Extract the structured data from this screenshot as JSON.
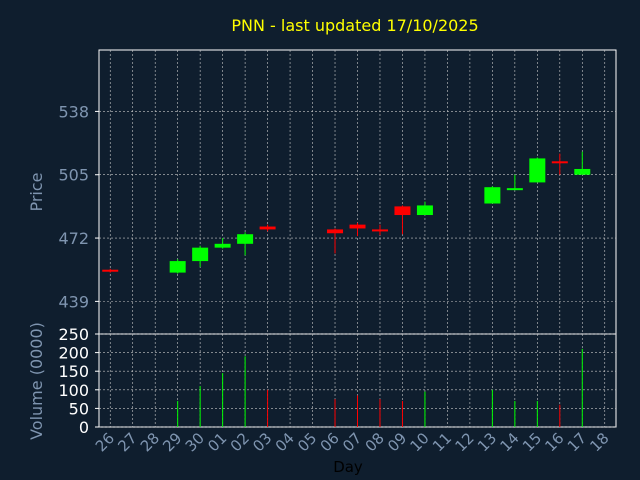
{
  "chart_data": [
    {
      "type": "candlestick",
      "title": "PNN - last updated 17/10/2025",
      "ylabel": "Price",
      "xlabel": "Day",
      "yticks": [
        439,
        472,
        505,
        538
      ],
      "ylim": [
        422,
        570
      ],
      "x_ticks": [
        "26",
        "27",
        "28",
        "29",
        "30",
        "01",
        "02",
        "03",
        "04",
        "05",
        "06",
        "07",
        "08",
        "09",
        "10",
        "11",
        "12",
        "13",
        "14",
        "15",
        "16",
        "17",
        "18"
      ],
      "grid": true,
      "candles": [
        {
          "day": "26",
          "open": 455.5,
          "close": 454.5,
          "high": 456.0,
          "low": 454.0
        },
        {
          "day": "29",
          "open": 454.0,
          "close": 460.0,
          "high": 461.0,
          "low": 453.5
        },
        {
          "day": "30",
          "open": 460.0,
          "close": 467.0,
          "high": 468.0,
          "low": 457.0
        },
        {
          "day": "01",
          "open": 467.0,
          "close": 469.0,
          "high": 472.0,
          "low": 466.5
        },
        {
          "day": "02",
          "open": 469.0,
          "close": 474.0,
          "high": 475.0,
          "low": 463.0
        },
        {
          "day": "03",
          "open": 478.0,
          "close": 476.5,
          "high": 479.0,
          "low": 475.5
        },
        {
          "day": "06",
          "open": 476.5,
          "close": 474.5,
          "high": 477.0,
          "low": 464.0
        },
        {
          "day": "07",
          "open": 479.0,
          "close": 477.0,
          "high": 480.0,
          "low": 473.0
        },
        {
          "day": "08",
          "open": 476.5,
          "close": 476.0,
          "high": 479.0,
          "low": 473.5
        },
        {
          "day": "09",
          "open": 488.5,
          "close": 484.0,
          "high": 489.0,
          "low": 474.0
        },
        {
          "day": "10",
          "open": 484.0,
          "close": 489.0,
          "high": 491.0,
          "low": 484.0
        },
        {
          "day": "13",
          "open": 490.0,
          "close": 498.5,
          "high": 499.0,
          "low": 490.0
        },
        {
          "day": "14",
          "open": 497.0,
          "close": 498.0,
          "high": 505.0,
          "low": 497.0
        },
        {
          "day": "15",
          "open": 501.0,
          "close": 513.5,
          "high": 514.0,
          "low": 501.0
        },
        {
          "day": "16",
          "open": 512.0,
          "close": 511.5,
          "high": 516.0,
          "low": 505.0
        },
        {
          "day": "17",
          "open": 505.0,
          "close": 508.0,
          "high": 517.0,
          "low": 505.0
        }
      ]
    },
    {
      "type": "bar",
      "ylabel": "Volume (0000)",
      "yticks": [
        0,
        50,
        100,
        150,
        200,
        250
      ],
      "ylim": [
        0,
        250
      ],
      "volumes": [
        {
          "day": "29",
          "value": 70,
          "dir": "up"
        },
        {
          "day": "30",
          "value": 110,
          "dir": "up"
        },
        {
          "day": "01",
          "value": 145,
          "dir": "up"
        },
        {
          "day": "02",
          "value": 190,
          "dir": "up"
        },
        {
          "day": "03",
          "value": 100,
          "dir": "down"
        },
        {
          "day": "06",
          "value": 75,
          "dir": "down"
        },
        {
          "day": "07",
          "value": 85,
          "dir": "down"
        },
        {
          "day": "08",
          "value": 75,
          "dir": "down"
        },
        {
          "day": "09",
          "value": 70,
          "dir": "down"
        },
        {
          "day": "10",
          "value": 95,
          "dir": "up"
        },
        {
          "day": "13",
          "value": 100,
          "dir": "up"
        },
        {
          "day": "14",
          "value": 70,
          "dir": "up"
        },
        {
          "day": "15",
          "value": 70,
          "dir": "up"
        },
        {
          "day": "16",
          "value": 60,
          "dir": "down"
        },
        {
          "day": "17",
          "value": 210,
          "dir": "up"
        }
      ]
    }
  ],
  "colors": {
    "background": "#0f1e2e",
    "axis": "#ffffff",
    "grid": "#c8c8c8",
    "title": "#ffff00",
    "label": "#7f95b0",
    "tick": "#ffffff",
    "up": "#00ff00",
    "down": "#ff0000"
  }
}
